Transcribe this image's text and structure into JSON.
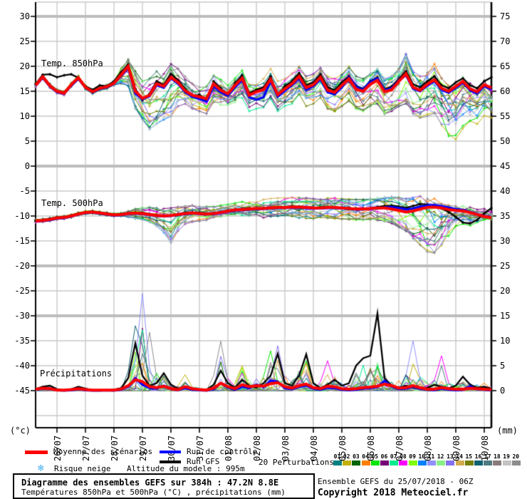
{
  "figure_labels": {
    "panel_850": "Temp. 850hPa",
    "panel_500": "Temp. 500hPa",
    "panel_precip": "Précipitations",
    "unit_left": "(°c)",
    "unit_right": "(mm)"
  },
  "axes": {
    "left_labels": [
      "30",
      "25",
      "20",
      "15",
      "10",
      "5",
      "0",
      "-5",
      "-10",
      "-15",
      "-20",
      "-25",
      "-30",
      "-35",
      "-40",
      "-45"
    ],
    "right_labels": [
      "75",
      "70",
      "65",
      "60",
      "55",
      "50",
      "45",
      "40",
      "35",
      "30",
      "25",
      "20",
      "15",
      "10",
      "5",
      "0"
    ],
    "date_labels": [
      "26/07",
      "27/07",
      "28/07",
      "29/07",
      "30/07",
      "31/07",
      "01/08",
      "02/08",
      "03/08",
      "04/08",
      "05/08",
      "06/08",
      "07/08",
      "08/08",
      "09/08",
      "10/08"
    ]
  },
  "legend": {
    "mean_label": "Moyenne des scénarios",
    "control_label": "Run de contrôle",
    "gfs_label": "Run GFS",
    "perturbations_label": "20 Perturbations",
    "snow_label": "Risque neige",
    "snow_icon": "❄",
    "altitude_label": "Altitude du modele : 995m",
    "mean_color": "#ff0000",
    "control_color": "#0000ff",
    "gfs_color": "#000000",
    "perturbations": [
      {
        "num": "01",
        "color": "#008080"
      },
      {
        "num": "02",
        "color": "#c2b10c"
      },
      {
        "num": "03",
        "color": "#006400"
      },
      {
        "num": "04",
        "color": "#ff7f00"
      },
      {
        "num": "05",
        "color": "#00e400"
      },
      {
        "num": "06",
        "color": "#750075"
      },
      {
        "num": "07",
        "color": "#00e890"
      },
      {
        "num": "08",
        "color": "#ff00ff"
      },
      {
        "num": "09",
        "color": "#7fff00"
      },
      {
        "num": "10",
        "color": "#0080ff"
      },
      {
        "num": "11",
        "color": "#9090ff"
      },
      {
        "num": "12",
        "color": "#86f086"
      },
      {
        "num": "13",
        "color": "#8470f0"
      },
      {
        "num": "14",
        "color": "#d2aa50"
      },
      {
        "num": "15",
        "color": "#728000"
      },
      {
        "num": "16",
        "color": "#0e6270"
      },
      {
        "num": "17",
        "color": "#4e7a80"
      },
      {
        "num": "18",
        "color": "#8a7b7b"
      },
      {
        "num": "19",
        "color": "#c4c4c4"
      },
      {
        "num": "20",
        "color": "#8c8c8c"
      }
    ]
  },
  "title_box": {
    "line1": "Diagramme des ensembles GEFS sur 384h : 47.2N 8.8E",
    "line2": "Températures 850hPa et 500hPa (°C) , précipitations (mm)"
  },
  "footer": {
    "run_info": "Ensemble GEFS du 25/07/2018 - 06Z",
    "copyright": "Copyright 2018 Meteociel.fr"
  },
  "chart_data": {
    "type": "line-ensemble",
    "x_hours_step": 6,
    "x_hours_max": 384,
    "panels": [
      "Temp. 850hPa (°C)",
      "Temp. 500hPa (°C)",
      "Précipitations (mm)"
    ],
    "grid": {
      "thin_values": [
        25,
        20,
        15,
        10,
        5,
        -5,
        -10,
        -15,
        -25,
        -35,
        -40,
        -45,
        -50
      ],
      "thick_values": [
        30,
        0,
        -20,
        -30
      ]
    },
    "t850": {
      "mean": [
        16.2,
        17.9,
        16.1,
        15.0,
        14.6,
        16.3,
        17.7,
        15.8,
        14.9,
        15.6,
        15.9,
        16.6,
        18.3,
        20.0,
        15.0,
        13.6,
        14.2,
        16.5,
        16.0,
        17.8,
        16.8,
        15.1,
        14.2,
        13.9,
        13.5,
        16.5,
        15.2,
        14.5,
        16.2,
        17.6,
        14.2,
        14.9,
        15.3,
        17.4,
        14.3,
        15.5,
        16.5,
        18.0,
        15.7,
        16.3,
        17.8,
        15.2,
        14.8,
        16.2,
        17.5,
        15.4,
        15.0,
        16.4,
        17.2,
        14.9,
        15.3,
        17.0,
        18.5,
        15.8,
        15.2,
        16.4,
        17.3,
        15.6,
        15.0,
        16.0,
        17.0,
        15.5,
        14.9,
        16.3,
        15.7
      ],
      "control": [
        16.1,
        17.7,
        16.0,
        14.9,
        14.5,
        16.1,
        17.5,
        15.7,
        14.8,
        15.5,
        15.8,
        16.5,
        18.1,
        19.7,
        14.6,
        13.4,
        14.0,
        16.2,
        15.7,
        17.6,
        16.5,
        14.8,
        13.9,
        13.5,
        12.9,
        16.0,
        14.8,
        14.1,
        15.8,
        17.2,
        13.8,
        13.3,
        13.8,
        17.0,
        13.9,
        15.1,
        16.2,
        17.6,
        15.3,
        16.0,
        17.4,
        14.8,
        14.4,
        15.8,
        17.8,
        15.8,
        15.3,
        16.8,
        17.6,
        15.2,
        15.6,
        17.2,
        18.2,
        15.5,
        15.0,
        16.1,
        17.0,
        15.3,
        14.7,
        15.7,
        16.7,
        15.2,
        14.6,
        16.0,
        15.4
      ],
      "gfs": [
        16.4,
        18.3,
        18.4,
        17.8,
        18.2,
        18.4,
        17.7,
        16.0,
        15.3,
        16.2,
        16.0,
        17.0,
        18.8,
        20.4,
        15.5,
        13.2,
        14.5,
        17.0,
        16.3,
        18.5,
        17.2,
        15.5,
        14.0,
        14.3,
        13.2,
        17.0,
        15.6,
        14.2,
        16.6,
        18.2,
        14.6,
        15.3,
        15.8,
        18.0,
        14.0,
        16.0,
        17.0,
        18.6,
        16.2,
        16.8,
        18.4,
        15.8,
        15.2,
        16.8,
        18.0,
        16.0,
        15.5,
        17.0,
        17.8,
        15.4,
        16.0,
        17.5,
        19.0,
        16.4,
        15.8,
        17.0,
        18.0,
        16.2,
        15.6,
        16.8,
        17.6,
        16.2,
        15.6,
        17.0,
        17.8
      ],
      "env_lo": [
        15.8,
        17.5,
        15.7,
        14.6,
        14.2,
        15.9,
        17.3,
        15.4,
        14.5,
        15.2,
        15.5,
        16.2,
        16.5,
        16.0,
        11.5,
        9.2,
        7.4,
        8.5,
        9.3,
        10.0,
        12.0,
        12.5,
        11.5,
        11.0,
        10.5,
        12.0,
        11.8,
        11.5,
        12.0,
        13.0,
        11.0,
        11.5,
        11.8,
        13.5,
        11.0,
        12.0,
        12.5,
        13.5,
        12.0,
        12.5,
        13.5,
        11.5,
        11.0,
        12.0,
        13.0,
        11.5,
        11.0,
        12.0,
        12.5,
        10.5,
        11.0,
        12.0,
        12.5,
        10.5,
        9.5,
        10.0,
        10.5,
        8.0,
        6.0,
        5.0,
        7.0,
        8.5,
        8.0,
        9.5,
        9.0
      ],
      "env_hi": [
        16.6,
        18.3,
        16.5,
        15.4,
        15.0,
        16.7,
        18.1,
        16.2,
        15.3,
        16.0,
        16.3,
        17.0,
        19.5,
        21.6,
        19.0,
        17.0,
        17.5,
        19.0,
        18.5,
        20.5,
        19.5,
        18.0,
        16.5,
        16.0,
        16.0,
        18.5,
        17.5,
        16.5,
        18.0,
        19.5,
        17.0,
        17.0,
        17.5,
        19.5,
        17.0,
        17.5,
        18.5,
        20.0,
        18.0,
        18.5,
        20.0,
        18.0,
        17.5,
        18.5,
        20.0,
        18.0,
        17.5,
        18.5,
        19.5,
        17.5,
        18.0,
        19.5,
        22.5,
        19.0,
        18.0,
        19.0,
        20.5,
        18.5,
        17.5,
        18.5,
        19.5,
        18.0,
        17.5,
        18.5,
        18.0
      ],
      "member_bias": {
        "02": [
          [
            20,
            26,
            -0.8
          ],
          [
            48,
            64,
            -0.97
          ]
        ],
        "16": [
          [
            13,
            18,
            -1
          ]
        ],
        "11": [
          [
            14,
            24,
            -0.85
          ]
        ],
        "01": [
          [
            26,
            44,
            0.8
          ]
        ],
        "05": [
          [
            44,
            56,
            0.9
          ]
        ]
      }
    },
    "t500": {
      "mean": [
        -11.0,
        -10.9,
        -10.7,
        -10.4,
        -10.3,
        -10.0,
        -9.6,
        -9.3,
        -9.2,
        -9.4,
        -9.6,
        -9.8,
        -9.7,
        -9.5,
        -9.4,
        -9.5,
        -9.7,
        -9.9,
        -10.0,
        -9.9,
        -9.7,
        -9.5,
        -9.4,
        -9.5,
        -9.6,
        -9.5,
        -9.3,
        -9.0,
        -8.8,
        -8.7,
        -8.6,
        -8.5,
        -8.5,
        -8.4,
        -8.3,
        -8.3,
        -8.2,
        -8.2,
        -8.3,
        -8.4,
        -8.4,
        -8.3,
        -8.3,
        -8.4,
        -8.5,
        -8.6,
        -8.6,
        -8.5,
        -8.4,
        -8.4,
        -8.6,
        -8.9,
        -9.2,
        -9.0,
        -8.6,
        -8.3,
        -8.2,
        -8.4,
        -8.7,
        -8.9,
        -9.0,
        -9.3,
        -9.7,
        -10.1,
        -10.3
      ],
      "control": [
        -11.1,
        -11.0,
        -10.8,
        -10.5,
        -10.4,
        -10.1,
        -9.7,
        -9.4,
        -9.3,
        -9.5,
        -9.7,
        -9.9,
        -9.8,
        -9.6,
        -9.5,
        -9.6,
        -9.8,
        -10.0,
        -10.1,
        -10.0,
        -9.8,
        -9.6,
        -9.5,
        -9.6,
        -9.7,
        -9.6,
        -9.4,
        -9.1,
        -8.9,
        -8.8,
        -8.7,
        -8.6,
        -8.6,
        -8.5,
        -8.4,
        -8.4,
        -8.3,
        -8.3,
        -8.4,
        -8.5,
        -8.5,
        -8.4,
        -8.4,
        -8.5,
        -8.6,
        -8.7,
        -8.7,
        -8.6,
        -8.5,
        -8.3,
        -8.2,
        -8.4,
        -8.7,
        -8.5,
        -8.1,
        -7.9,
        -7.8,
        -8.0,
        -8.3,
        -8.6,
        -8.8,
        -9.2,
        -9.6,
        -10.0,
        -10.2
      ],
      "gfs": [
        -11.0,
        -10.9,
        -10.6,
        -10.3,
        -10.2,
        -9.9,
        -9.5,
        -9.2,
        -9.1,
        -9.3,
        -9.5,
        -9.7,
        -9.6,
        -9.4,
        -9.3,
        -9.4,
        -9.6,
        -9.8,
        -9.9,
        -9.8,
        -9.6,
        -9.4,
        -9.3,
        -9.4,
        -9.5,
        -9.4,
        -9.2,
        -8.9,
        -8.7,
        -8.6,
        -8.5,
        -8.4,
        -8.4,
        -8.3,
        -8.2,
        -8.2,
        -8.1,
        -8.1,
        -8.2,
        -8.3,
        -8.3,
        -8.2,
        -8.2,
        -8.3,
        -8.4,
        -8.5,
        -8.5,
        -8.4,
        -8.2,
        -8.0,
        -7.9,
        -8.1,
        -8.4,
        -8.0,
        -7.6,
        -7.7,
        -8.0,
        -8.5,
        -9.2,
        -10.2,
        -11.3,
        -11.5,
        -10.8,
        -9.5,
        -8.4
      ],
      "env_lo": [
        -11.3,
        -11.2,
        -11.0,
        -10.7,
        -10.6,
        -10.3,
        -9.9,
        -9.6,
        -9.5,
        -9.7,
        -9.9,
        -10.1,
        -10.0,
        -10.2,
        -10.5,
        -10.8,
        -11.2,
        -12.0,
        -13.3,
        -15.3,
        -13.0,
        -11.6,
        -11.2,
        -11.0,
        -10.8,
        -10.6,
        -10.4,
        -10.3,
        -10.2,
        -10.2,
        -10.3,
        -10.4,
        -10.4,
        -10.3,
        -10.2,
        -10.2,
        -10.3,
        -10.4,
        -10.5,
        -10.5,
        -10.4,
        -10.4,
        -10.5,
        -10.6,
        -10.7,
        -10.8,
        -10.8,
        -10.7,
        -10.8,
        -11.0,
        -11.5,
        -12.2,
        -13.0,
        -14.5,
        -16.0,
        -17.2,
        -17.5,
        -16.0,
        -14.0,
        -12.5,
        -12.0,
        -12.2,
        -12.0,
        -11.6,
        -11.4
      ],
      "env_hi": [
        -10.7,
        -10.6,
        -10.4,
        -10.1,
        -10.0,
        -9.7,
        -9.3,
        -9.0,
        -8.9,
        -9.1,
        -9.3,
        -9.5,
        -9.4,
        -9.0,
        -8.6,
        -8.4,
        -8.3,
        -8.4,
        -8.5,
        -8.4,
        -8.2,
        -8.0,
        -7.9,
        -8.0,
        -8.1,
        -8.0,
        -7.8,
        -7.5,
        -7.2,
        -7.0,
        -6.9,
        -6.8,
        -6.7,
        -6.5,
        -6.4,
        -6.4,
        -6.3,
        -6.3,
        -6.4,
        -6.5,
        -6.5,
        -6.4,
        -6.4,
        -6.5,
        -6.6,
        -6.7,
        -6.7,
        -6.6,
        -6.5,
        -6.3,
        -6.2,
        -6.3,
        -6.5,
        -6.3,
        -6.0,
        -6.2,
        -6.5,
        -6.8,
        -7.0,
        -7.2,
        -7.4,
        -7.6,
        -7.8,
        -8.0,
        -8.2
      ],
      "member_bias": {
        "02": [
          [
            51,
            59,
            -1
          ],
          [
            60,
            64,
            -0.5
          ]
        ],
        "11": [
          [
            16,
            22,
            -1
          ]
        ],
        "20": [
          [
            28,
            40,
            -0.7
          ]
        ],
        "07": [
          [
            30,
            44,
            0.8
          ]
        ]
      }
    },
    "precip": {
      "mean": [
        0.3,
        0.5,
        0.4,
        0.1,
        0.1,
        0.2,
        0.4,
        0.2,
        0.1,
        0.1,
        0.1,
        0.1,
        0.3,
        1.0,
        2.2,
        1.8,
        0.8,
        0.6,
        0.9,
        0.4,
        0.2,
        0.8,
        0.4,
        0.2,
        0.1,
        0.5,
        1.5,
        0.8,
        0.4,
        1.2,
        0.8,
        1.0,
        0.9,
        1.4,
        1.6,
        0.8,
        0.5,
        1.0,
        1.3,
        0.6,
        0.4,
        0.9,
        0.8,
        0.4,
        0.3,
        0.4,
        0.6,
        0.7,
        0.9,
        1.3,
        1.0,
        0.5,
        0.6,
        1.0,
        0.6,
        0.3,
        0.3,
        0.6,
        0.4,
        0.3,
        0.3,
        0.5,
        0.4,
        0.3,
        0.2
      ],
      "control": [
        0.2,
        0.4,
        0.3,
        0.1,
        0.0,
        0.1,
        0.3,
        0.1,
        0.0,
        0.0,
        0.1,
        0.0,
        0.2,
        0.8,
        2.5,
        1.2,
        0.5,
        0.4,
        1.0,
        0.3,
        0.1,
        0.5,
        0.2,
        0.1,
        0.0,
        0.3,
        1.5,
        0.6,
        0.2,
        0.8,
        0.5,
        1.2,
        0.7,
        2.0,
        1.8,
        0.5,
        0.3,
        0.8,
        1.0,
        0.4,
        0.2,
        0.6,
        0.5,
        0.2,
        0.1,
        0.2,
        0.4,
        0.5,
        0.7,
        2.0,
        0.8,
        0.3,
        0.4,
        0.8,
        0.4,
        0.2,
        0.1,
        0.4,
        0.2,
        0.1,
        0.2,
        0.9,
        0.3,
        0.2,
        0.1
      ],
      "gfs": [
        0.3,
        0.8,
        1.0,
        0.3,
        0.1,
        0.3,
        0.8,
        0.4,
        0.1,
        0.1,
        0.1,
        0.2,
        0.5,
        2.5,
        9.5,
        3.0,
        1.0,
        1.5,
        3.5,
        1.2,
        0.4,
        0.8,
        0.4,
        0.2,
        0.2,
        1.2,
        4.0,
        1.5,
        0.6,
        2.2,
        1.0,
        0.6,
        1.5,
        3.0,
        7.4,
        1.5,
        1.0,
        3.0,
        7.3,
        1.5,
        0.5,
        1.2,
        2.2,
        1.0,
        1.5,
        5.0,
        6.5,
        7.0,
        15.5,
        2.5,
        1.0,
        0.6,
        1.0,
        0.6,
        0.4,
        0.6,
        1.2,
        0.8,
        0.5,
        1.0,
        2.8,
        1.2,
        0.6,
        0.8,
        0.4
      ],
      "env_max": [
        0.5,
        1.0,
        1.4,
        0.5,
        0.3,
        0.5,
        1.2,
        0.7,
        0.3,
        0.3,
        0.3,
        0.4,
        0.9,
        5.0,
        13.0,
        19.5,
        12.0,
        5.0,
        4.5,
        2.2,
        1.2,
        3.5,
        1.6,
        0.9,
        0.6,
        3.0,
        10.0,
        4.2,
        2.2,
        6.5,
        3.2,
        4.2,
        5.0,
        8.5,
        9.5,
        4.2,
        3.0,
        5.5,
        8.0,
        3.2,
        2.2,
        6.0,
        4.2,
        2.2,
        1.8,
        5.5,
        7.0,
        7.5,
        15.5,
        4.5,
        2.5,
        3.0,
        4.5,
        10.0,
        4.2,
        2.2,
        3.0,
        7.0,
        2.2,
        1.6,
        3.0,
        2.2,
        1.6,
        1.6,
        1.2
      ],
      "member_peaks": {
        "11": [
          [
            15,
            19.5
          ],
          [
            53,
            10.0
          ]
        ],
        "16": [
          [
            14,
            13.0
          ],
          [
            15,
            9.0
          ]
        ],
        "20": [
          [
            16,
            11.7
          ],
          [
            26,
            9.9
          ]
        ],
        "08": [
          [
            41,
            6.0
          ],
          [
            57,
            7.0
          ]
        ],
        "05": [
          [
            33,
            8.0
          ],
          [
            38,
            6.0
          ]
        ],
        "02": [
          [
            21,
            3.2
          ],
          [
            29,
            5.0
          ]
        ],
        "13": [
          [
            34,
            9.0
          ]
        ],
        "04": [
          [
            1,
            0.9
          ],
          [
            63,
            1.5
          ]
        ]
      }
    }
  }
}
